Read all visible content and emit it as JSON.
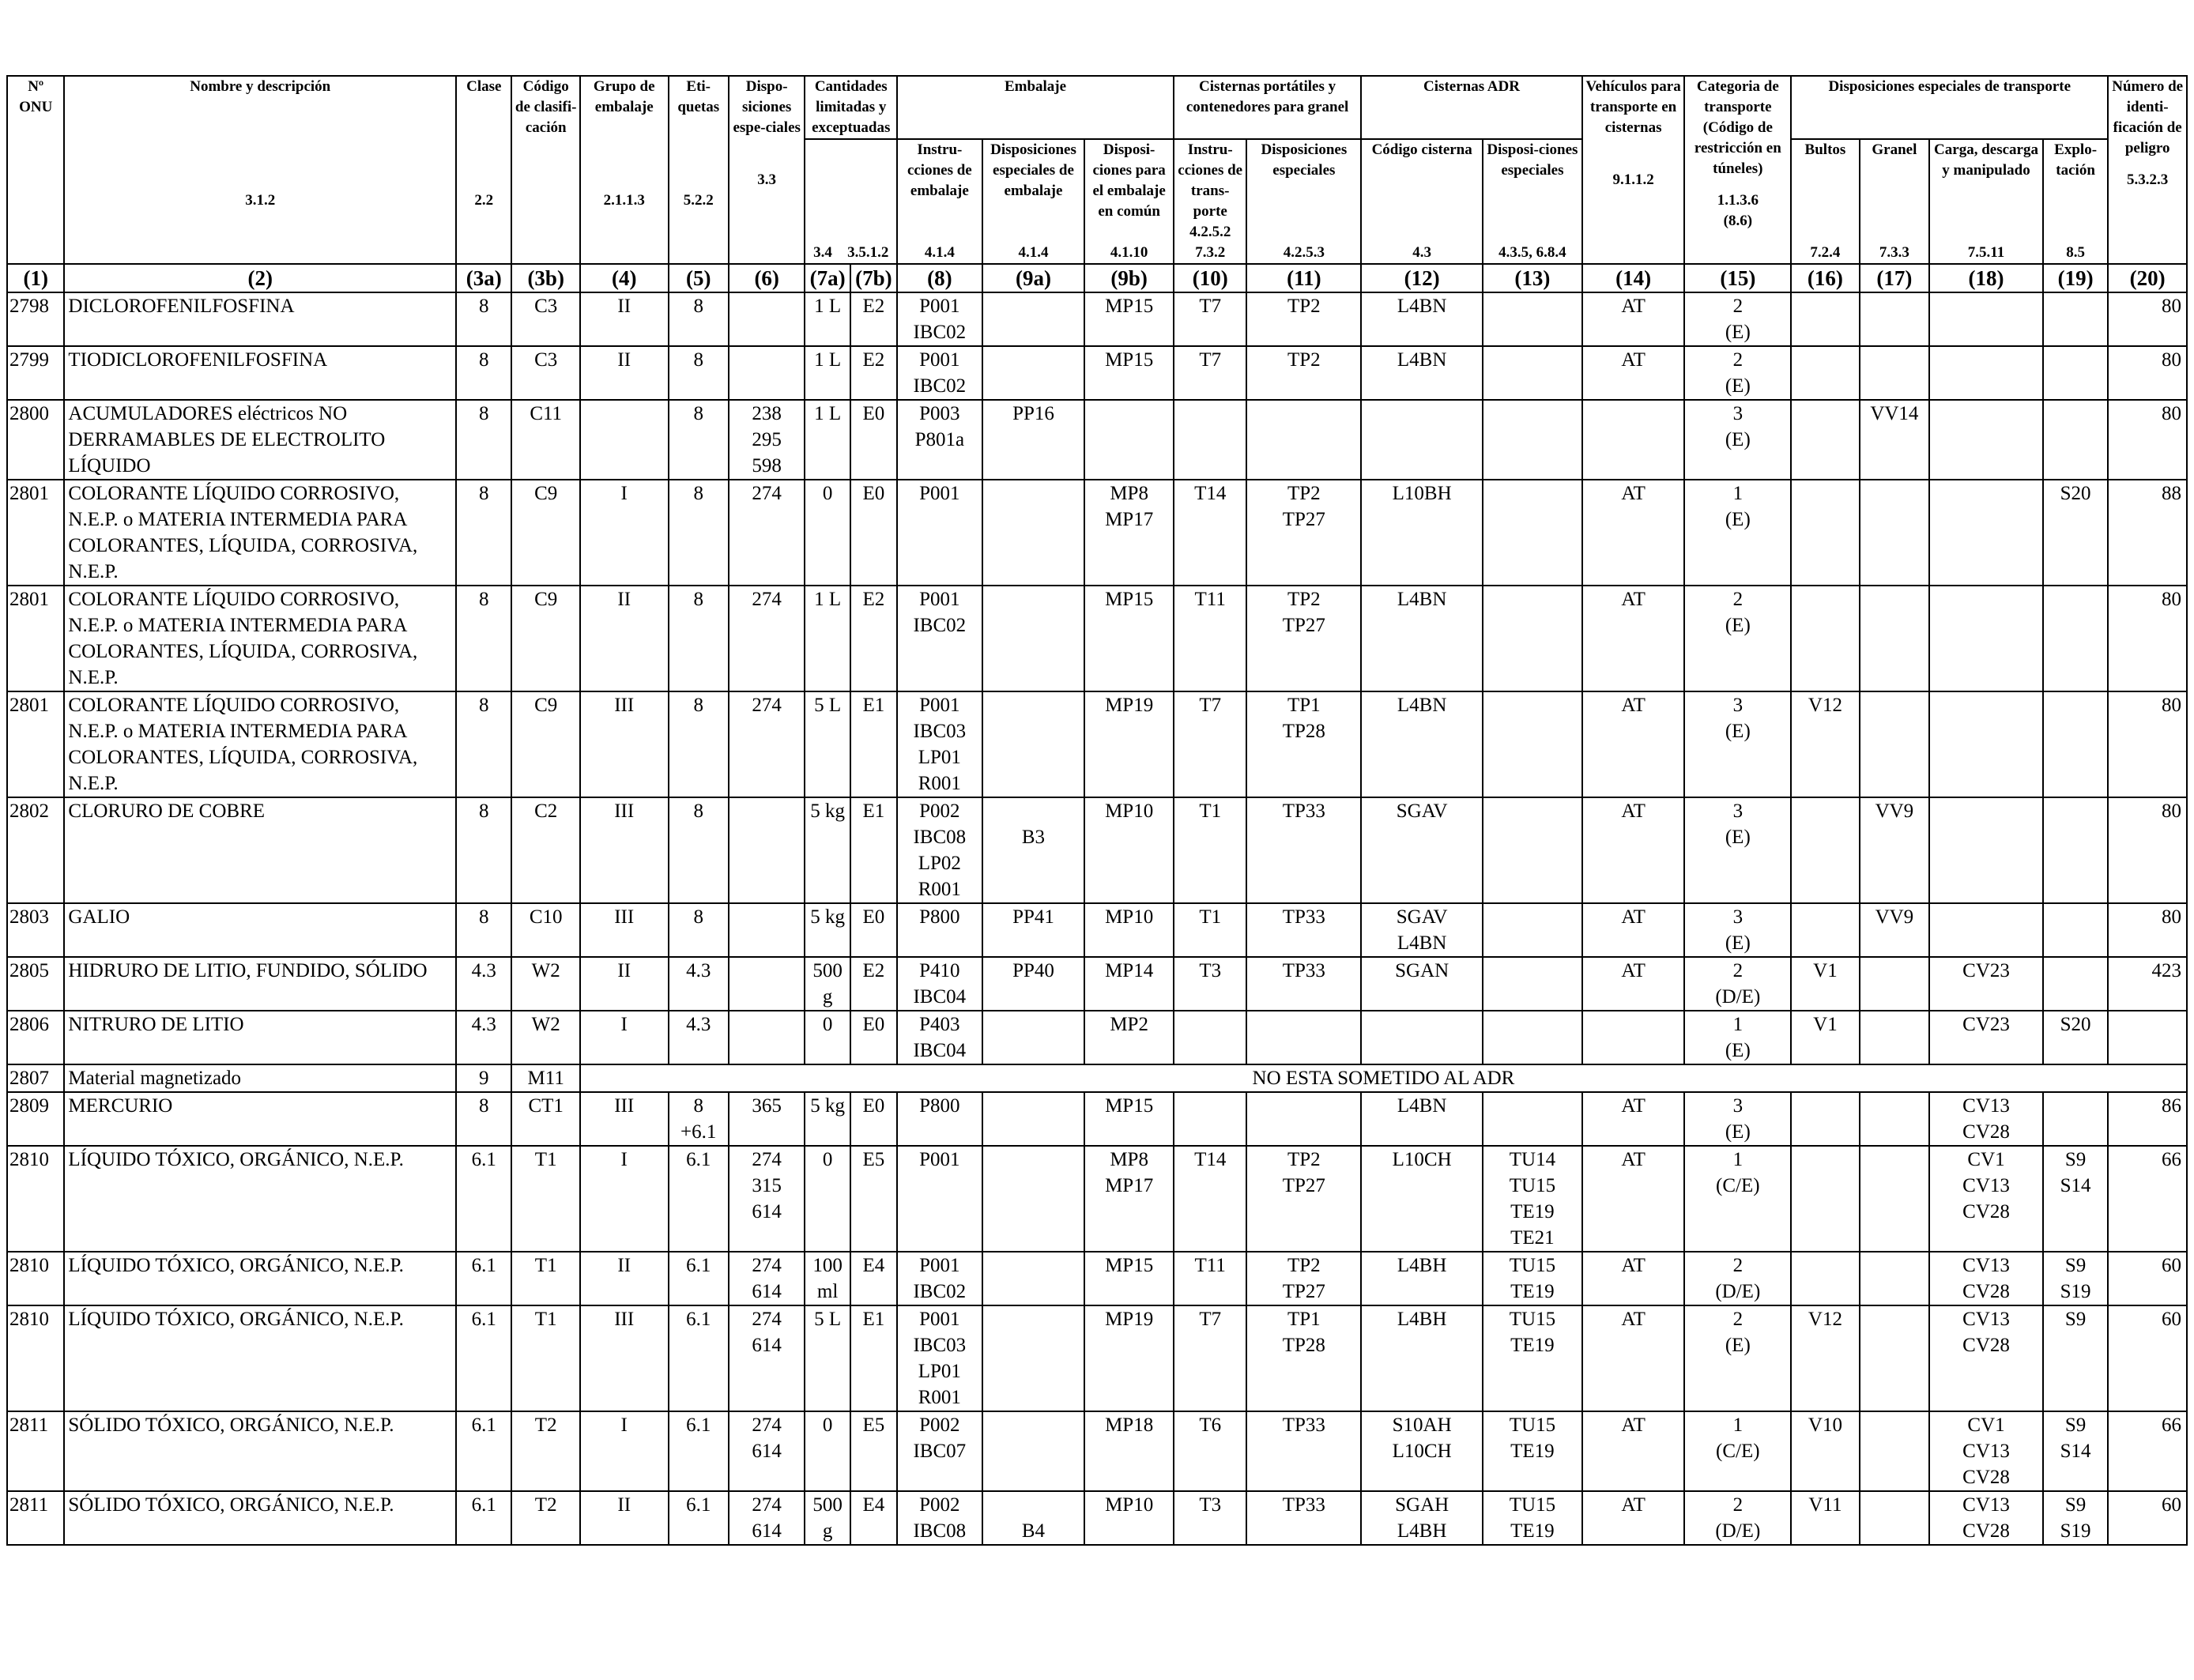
{
  "headers": {
    "onu": "Nº ONU",
    "name": "Nombre y descripción",
    "clase": "Clase",
    "codigo": "Código de clasifi-cación",
    "grupo": "Grupo de embalaje",
    "etiquetas": "Eti-quetas",
    "disp": "Dispo-siciones espe-ciales",
    "cantidades": "Cantidades limitadas y exceptuadas",
    "embalaje": "Embalaje",
    "inst": "Instru-cciones de embalaje",
    "dispemb": "Disposiciones especiales de embalaje",
    "dispcomun": "Disposi-ciones para el embalaje en común",
    "cisternas": "Cisternas portátiles y contenedores para granel",
    "cinst": "Instru-cciones de trans-porte",
    "cdisp": "Disposiciones especiales",
    "adr": "Cisternas ADR",
    "adrcode": "Código cisterna",
    "adrdisp": "Disposi-ciones especiales",
    "vehiculos": "Vehículos para transporte en cisternas",
    "categoria": "Categoria de transporte (Código de restricción en túneles)",
    "dispTrans": "Disposiciones especiales de transporte",
    "bultos": "Bultos",
    "granel": "Granel",
    "carga": "Carga, descarga y manipulado",
    "explo": "Explo-tación",
    "numero": "Número de identi-ficación de peligro"
  },
  "refs": {
    "name": "3.1.2",
    "clase": "2.2",
    "grupo": "2.1.1.3",
    "etiquetas": "5.2.2",
    "disp": "3.3",
    "c7a": "3.4",
    "c7b": "3.5.1.2",
    "inst": "4.1.4",
    "dispemb": "4.1.4",
    "dispcomun": "4.1.10",
    "cinst": "4.2.5.2\n7.3.2",
    "cdisp": "4.2.5.3",
    "adrcode": "4.3",
    "adrdisp": "4.3.5, 6.8.4",
    "vehiculos": "9.1.1.2",
    "categoria": "1.1.3.6\n(8.6)",
    "bultos": "7.2.4",
    "granel": "7.3.3",
    "carga": "7.5.11",
    "explo": "8.5",
    "numero": "5.3.2.3"
  },
  "colnums": [
    "(1)",
    "(2)",
    "(3a)",
    "(3b)",
    "(4)",
    "(5)",
    "(6)",
    "(7a)",
    "(7b)",
    "(8)",
    "(9a)",
    "(9b)",
    "(10)",
    "(11)",
    "(12)",
    "(13)",
    "(14)",
    "(15)",
    "(16)",
    "(17)",
    "(18)",
    "(19)",
    "(20)"
  ],
  "rows": [
    {
      "cells": [
        "2798",
        "DICLOROFENILFOSFINA",
        "8",
        "C3",
        "II",
        "8",
        "",
        "1 L",
        "E2",
        "P001\nIBC02",
        "",
        "MP15",
        "T7",
        "TP2",
        "L4BN",
        "",
        "AT",
        "2\n(E)",
        "",
        "",
        "",
        "",
        "80"
      ]
    },
    {
      "cells": [
        "2799",
        "TIODICLOROFENILFOSFINA",
        "8",
        "C3",
        "II",
        "8",
        "",
        "1 L",
        "E2",
        "P001\nIBC02",
        "",
        "MP15",
        "T7",
        "TP2",
        "L4BN",
        "",
        "AT",
        "2\n(E)",
        "",
        "",
        "",
        "",
        "80"
      ]
    },
    {
      "cells": [
        "2800",
        "ACUMULADORES eléctricos NO DERRAMABLES DE ELECTROLITO LÍQUIDO",
        "8",
        "C11",
        "",
        "8",
        "238\n295\n598",
        "1 L",
        "E0",
        "P003\nP801a",
        "PP16",
        "",
        "",
        "",
        "",
        "",
        "",
        "3\n(E)",
        "",
        "VV14",
        "",
        "",
        "80"
      ]
    },
    {
      "cells": [
        "2801",
        "COLORANTE LÍQUIDO CORROSIVO, N.E.P. o MATERIA INTERMEDIA PARA COLORANTES, LÍQUIDA, CORROSIVA, N.E.P.",
        "8",
        "C9",
        "I",
        "8",
        "274",
        "0",
        "E0",
        "P001",
        "",
        "MP8\nMP17",
        "T14",
        "TP2\nTP27",
        "L10BH",
        "",
        "AT",
        "1\n(E)",
        "",
        "",
        "",
        "S20",
        "88"
      ]
    },
    {
      "cells": [
        "2801",
        "COLORANTE LÍQUIDO CORROSIVO, N.E.P. o MATERIA INTERMEDIA PARA COLORANTES, LÍQUIDA, CORROSIVA, N.E.P.",
        "8",
        "C9",
        "II",
        "8",
        "274",
        "1 L",
        "E2",
        "P001\nIBC02",
        "",
        "MP15",
        "T11",
        "TP2\nTP27",
        "L4BN",
        "",
        "AT",
        "2\n(E)",
        "",
        "",
        "",
        "",
        "80"
      ]
    },
    {
      "cells": [
        "2801",
        "COLORANTE LÍQUIDO CORROSIVO, N.E.P. o MATERIA INTERMEDIA PARA COLORANTES, LÍQUIDA, CORROSIVA, N.E.P.",
        "8",
        "C9",
        "III",
        "8",
        "274",
        "5 L",
        "E1",
        "P001\nIBC03\nLP01\nR001",
        "",
        "MP19",
        "T7",
        "TP1\nTP28",
        "L4BN",
        "",
        "AT",
        "3\n(E)",
        "V12",
        "",
        "",
        "",
        "80"
      ]
    },
    {
      "cells": [
        "2802",
        "CLORURO DE COBRE",
        "8",
        "C2",
        "III",
        "8",
        "",
        "5 kg",
        "E1",
        "P002\nIBC08\nLP02\nR001",
        "\nB3",
        "MP10",
        "T1",
        "TP33",
        "SGAV",
        "",
        "AT",
        "3\n(E)",
        "",
        "VV9",
        "",
        "",
        "80"
      ]
    },
    {
      "cells": [
        "2803",
        "GALIO",
        "8",
        "C10",
        "III",
        "8",
        "",
        "5 kg",
        "E0",
        "P800",
        "PP41",
        "MP10",
        "T1",
        "TP33",
        "SGAV\nL4BN",
        "",
        "AT",
        "3\n(E)",
        "",
        "VV9",
        "",
        "",
        "80"
      ]
    },
    {
      "cells": [
        "2805",
        "HIDRURO DE LITIO, FUNDIDO, SÓLIDO",
        "4.3",
        "W2",
        "II",
        "4.3",
        "",
        "500\ng",
        "E2",
        "P410\nIBC04",
        "PP40",
        "MP14",
        "T3",
        "TP33",
        "SGAN",
        "",
        "AT",
        "2\n(D/E)",
        "V1",
        "",
        "CV23",
        "",
        "423"
      ]
    },
    {
      "cells": [
        "2806",
        "NITRURO DE LITIO",
        "4.3",
        "W2",
        "I",
        "4.3",
        "",
        "0",
        "E0",
        "P403\nIBC04",
        "",
        "MP2",
        "",
        "",
        "",
        "",
        "",
        "1\n(E)",
        "V1",
        "",
        "CV23",
        "S20",
        ""
      ]
    },
    {
      "cells": [
        "2807",
        "Material magnetizado",
        "9",
        "M11"
      ],
      "notice": "NO ESTA SOMETIDO AL ADR"
    },
    {
      "cells": [
        "2809",
        "MERCURIO",
        "8",
        "CT1",
        "III",
        "8\n+6.1",
        "365",
        "5 kg",
        "E0",
        "P800",
        "",
        "MP15",
        "",
        "",
        "L4BN",
        "",
        "AT",
        "3\n(E)",
        "",
        "",
        "CV13\nCV28",
        "",
        "86"
      ]
    },
    {
      "cells": [
        "2810",
        "LÍQUIDO TÓXICO, ORGÁNICO, N.E.P.",
        "6.1",
        "T1",
        "I",
        "6.1",
        "274\n315\n614",
        "0",
        "E5",
        "P001",
        "",
        "MP8\nMP17",
        "T14",
        "TP2\nTP27",
        "L10CH",
        "TU14\nTU15\nTE19\nTE21",
        "AT",
        "1\n(C/E)",
        "",
        "",
        "CV1\nCV13\nCV28",
        "S9\nS14",
        "66"
      ]
    },
    {
      "cells": [
        "2810",
        "LÍQUIDO TÓXICO, ORGÁNICO, N.E.P.",
        "6.1",
        "T1",
        "II",
        "6.1",
        "274\n614",
        "100\nml",
        "E4",
        "P001\nIBC02",
        "",
        "MP15",
        "T11",
        "TP2\nTP27",
        "L4BH",
        "TU15\nTE19",
        "AT",
        "2\n(D/E)",
        "",
        "",
        "CV13\nCV28",
        "S9\nS19",
        "60"
      ]
    },
    {
      "cells": [
        "2810",
        "LÍQUIDO TÓXICO, ORGÁNICO, N.E.P.",
        "6.1",
        "T1",
        "III",
        "6.1",
        "274\n614",
        "5 L",
        "E1",
        "P001\nIBC03\nLP01\nR001",
        "",
        "MP19",
        "T7",
        "TP1\nTP28",
        "L4BH",
        "TU15\nTE19",
        "AT",
        "2\n(E)",
        "V12",
        "",
        "CV13\nCV28",
        "S9",
        "60"
      ]
    },
    {
      "cells": [
        "2811",
        "SÓLIDO TÓXICO, ORGÁNICO, N.E.P.",
        "6.1",
        "T2",
        "I",
        "6.1",
        "274\n614",
        "0",
        "E5",
        "P002\nIBC07",
        "",
        "MP18",
        "T6",
        "TP33",
        "S10AH\nL10CH",
        "TU15\nTE19",
        "AT",
        "1\n(C/E)",
        "V10",
        "",
        "CV1\nCV13\nCV28",
        "S9\nS14",
        "66"
      ]
    },
    {
      "cells": [
        "2811",
        "SÓLIDO TÓXICO, ORGÁNICO, N.E.P.",
        "6.1",
        "T2",
        "II",
        "6.1",
        "274\n614",
        "500\ng",
        "E4",
        "P002\nIBC08",
        "\nB4",
        "MP10",
        "T3",
        "TP33",
        "SGAH\nL4BH",
        "TU15\nTE19",
        "AT",
        "2\n(D/E)",
        "V11",
        "",
        "CV13\nCV28",
        "S9\nS19",
        "60"
      ]
    }
  ]
}
